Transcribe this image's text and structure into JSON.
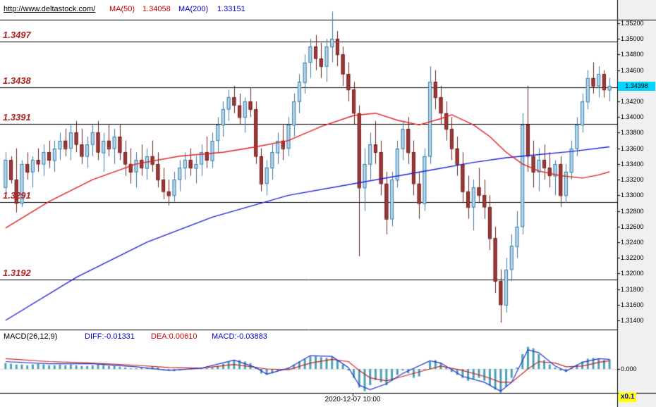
{
  "header": {
    "url": "http://www.deltastock.com/",
    "ma50_label": "MA(50)",
    "ma50_value": "1.34058",
    "ma200_label": "MA(200)",
    "ma200_value": "1.33151"
  },
  "axis": {
    "price_ticks": [
      "1.35200",
      "1.35000",
      "1.34800",
      "1.34600",
      "1.34400",
      "1.34200",
      "1.34000",
      "1.33800",
      "1.33600",
      "1.33400",
      "1.33200",
      "1.33000",
      "1.32800",
      "1.32600",
      "1.32400",
      "1.32200",
      "1.32000",
      "1.31800",
      "1.31600",
      "1.31400"
    ],
    "current_price": "1.34398",
    "macd_zero": "0.000",
    "multiplier": "x0.1"
  },
  "levels": [
    {
      "label": "1.3497",
      "value": 1.3497
    },
    {
      "label": "1.3438",
      "value": 1.3438
    },
    {
      "label": "1.3391",
      "value": 1.3391
    },
    {
      "label": "1.3291",
      "value": 1.3291
    },
    {
      "label": "1.3192",
      "value": 1.3192
    }
  ],
  "macd_header": {
    "title": "MACD(26,12,9)",
    "diff": "DIFF:-0.01331",
    "dea": "DEA:0.00610",
    "macd": "MACD:-0.03883"
  },
  "footer": {
    "timestamp": "2020-12-07 10:00"
  },
  "colors": {
    "axis_bg": "#f0f0f0",
    "up_fill": "#b8d8ea",
    "up_stroke": "#3a7ca8",
    "down_fill": "#9e3939",
    "down_stroke": "#6e1f1f",
    "ma50": "#e02020",
    "ma200": "#2020dd",
    "hist": "#4aa0b8",
    "diff_line": "#2233cc",
    "dea_line": "#cc2222",
    "level_line": "#000000",
    "price_tag_bg": "#00d5ff",
    "multiplier_bg": "#ffff00"
  },
  "chart_data": {
    "type": "candlestick",
    "ylim": [
      1.3126,
      1.3525
    ],
    "candles": [
      [
        1.331,
        1.3355,
        1.33,
        1.3345
      ],
      [
        1.3345,
        1.335,
        1.3315,
        1.332
      ],
      [
        1.332,
        1.336,
        1.3278,
        1.329
      ],
      [
        1.329,
        1.3345,
        1.3285,
        1.334
      ],
      [
        1.334,
        1.3355,
        1.332,
        1.333
      ],
      [
        1.333,
        1.335,
        1.331,
        1.3345
      ],
      [
        1.3345,
        1.336,
        1.333,
        1.334
      ],
      [
        1.334,
        1.3365,
        1.3325,
        1.3355
      ],
      [
        1.3355,
        1.337,
        1.3335,
        1.3345
      ],
      [
        1.3345,
        1.337,
        1.333,
        1.336
      ],
      [
        1.336,
        1.338,
        1.3345,
        1.337
      ],
      [
        1.337,
        1.3385,
        1.335,
        1.336
      ],
      [
        1.336,
        1.339,
        1.3345,
        1.338
      ],
      [
        1.338,
        1.3395,
        1.3355,
        1.3365
      ],
      [
        1.3365,
        1.3385,
        1.334,
        1.335
      ],
      [
        1.335,
        1.3375,
        1.3335,
        1.3365
      ],
      [
        1.3365,
        1.339,
        1.335,
        1.338
      ],
      [
        1.338,
        1.3395,
        1.3345,
        1.3355
      ],
      [
        1.3355,
        1.338,
        1.333,
        1.337
      ],
      [
        1.337,
        1.339,
        1.335,
        1.336
      ],
      [
        1.336,
        1.3385,
        1.334,
        1.3375
      ],
      [
        1.3375,
        1.339,
        1.3345,
        1.3355
      ],
      [
        1.3355,
        1.337,
        1.3325,
        1.334
      ],
      [
        1.334,
        1.336,
        1.3315,
        1.333
      ],
      [
        1.333,
        1.3355,
        1.331,
        1.3345
      ],
      [
        1.3345,
        1.3365,
        1.3325,
        1.3335
      ],
      [
        1.3335,
        1.336,
        1.332,
        1.335
      ],
      [
        1.335,
        1.337,
        1.333,
        1.334
      ],
      [
        1.334,
        1.3355,
        1.331,
        1.332
      ],
      [
        1.332,
        1.3335,
        1.3295,
        1.3305
      ],
      [
        1.3305,
        1.332,
        1.3287,
        1.33
      ],
      [
        1.33,
        1.333,
        1.3292,
        1.332
      ],
      [
        1.332,
        1.3345,
        1.3305,
        1.3335
      ],
      [
        1.3335,
        1.3355,
        1.332,
        1.3345
      ],
      [
        1.3345,
        1.336,
        1.3325,
        1.3335
      ],
      [
        1.3335,
        1.335,
        1.3315,
        1.334
      ],
      [
        1.334,
        1.3365,
        1.3325,
        1.3355
      ],
      [
        1.3355,
        1.3375,
        1.3335,
        1.3345
      ],
      [
        1.3345,
        1.338,
        1.3335,
        1.337
      ],
      [
        1.337,
        1.34,
        1.3355,
        1.339
      ],
      [
        1.339,
        1.342,
        1.3375,
        1.341
      ],
      [
        1.341,
        1.3435,
        1.3395,
        1.3425
      ],
      [
        1.3425,
        1.344,
        1.3405,
        1.3415
      ],
      [
        1.3415,
        1.343,
        1.339,
        1.34
      ],
      [
        1.34,
        1.3425,
        1.338,
        1.342
      ],
      [
        1.342,
        1.3438,
        1.34,
        1.341
      ],
      [
        1.341,
        1.342,
        1.334,
        1.335
      ],
      [
        1.335,
        1.336,
        1.3305,
        1.3315
      ],
      [
        1.3315,
        1.3345,
        1.33,
        1.3335
      ],
      [
        1.3335,
        1.3365,
        1.332,
        1.3355
      ],
      [
        1.3355,
        1.338,
        1.334,
        1.337
      ],
      [
        1.337,
        1.339,
        1.3345,
        1.336
      ],
      [
        1.336,
        1.34,
        1.335,
        1.339
      ],
      [
        1.339,
        1.343,
        1.3375,
        1.342
      ],
      [
        1.342,
        1.3455,
        1.3405,
        1.3445
      ],
      [
        1.3445,
        1.348,
        1.343,
        1.347
      ],
      [
        1.347,
        1.35,
        1.345,
        1.349
      ],
      [
        1.349,
        1.3505,
        1.346,
        1.3475
      ],
      [
        1.3475,
        1.3495,
        1.345,
        1.3465
      ],
      [
        1.3465,
        1.35,
        1.3445,
        1.349
      ],
      [
        1.349,
        1.3535,
        1.347,
        1.35
      ],
      [
        1.35,
        1.351,
        1.3465,
        1.348
      ],
      [
        1.348,
        1.349,
        1.344,
        1.3455
      ],
      [
        1.3455,
        1.347,
        1.342,
        1.3435
      ],
      [
        1.3435,
        1.3445,
        1.339,
        1.3405
      ],
      [
        1.3405,
        1.3415,
        1.3222,
        1.331
      ],
      [
        1.331,
        1.336,
        1.328,
        1.334
      ],
      [
        1.334,
        1.338,
        1.332,
        1.3365
      ],
      [
        1.3365,
        1.3395,
        1.334,
        1.3355
      ],
      [
        1.3355,
        1.337,
        1.33,
        1.3315
      ],
      [
        1.3315,
        1.333,
        1.325,
        1.327
      ],
      [
        1.327,
        1.333,
        1.326,
        1.332
      ],
      [
        1.332,
        1.337,
        1.331,
        1.336
      ],
      [
        1.336,
        1.3395,
        1.3345,
        1.3385
      ],
      [
        1.3385,
        1.34,
        1.334,
        1.3355
      ],
      [
        1.3355,
        1.337,
        1.33,
        1.3315
      ],
      [
        1.3315,
        1.333,
        1.327,
        1.329
      ],
      [
        1.329,
        1.336,
        1.328,
        1.335
      ],
      [
        1.335,
        1.3465,
        1.334,
        1.3445
      ],
      [
        1.3445,
        1.346,
        1.341,
        1.3425
      ],
      [
        1.3425,
        1.344,
        1.339,
        1.3405
      ],
      [
        1.3405,
        1.342,
        1.337,
        1.3385
      ],
      [
        1.3385,
        1.34,
        1.3345,
        1.336
      ],
      [
        1.336,
        1.3375,
        1.3325,
        1.334
      ],
      [
        1.334,
        1.3355,
        1.329,
        1.3305
      ],
      [
        1.3305,
        1.3325,
        1.327,
        1.3285
      ],
      [
        1.3285,
        1.332,
        1.3255,
        1.331
      ],
      [
        1.331,
        1.3335,
        1.329,
        1.33
      ],
      [
        1.33,
        1.332,
        1.327,
        1.3285
      ],
      [
        1.3285,
        1.33,
        1.323,
        1.3245
      ],
      [
        1.3245,
        1.326,
        1.3175,
        1.319
      ],
      [
        1.319,
        1.3205,
        1.3137,
        1.316
      ],
      [
        1.316,
        1.322,
        1.315,
        1.3205
      ],
      [
        1.3205,
        1.325,
        1.319,
        1.3235
      ],
      [
        1.3235,
        1.328,
        1.322,
        1.326
      ],
      [
        1.326,
        1.3405,
        1.325,
        1.339
      ],
      [
        1.339,
        1.344,
        1.333,
        1.335
      ],
      [
        1.335,
        1.337,
        1.331,
        1.333
      ],
      [
        1.333,
        1.336,
        1.3305,
        1.3345
      ],
      [
        1.3345,
        1.3365,
        1.332,
        1.3335
      ],
      [
        1.3335,
        1.3355,
        1.331,
        1.3325
      ],
      [
        1.3325,
        1.3345,
        1.33,
        1.334
      ],
      [
        1.334,
        1.335,
        1.3285,
        1.33
      ],
      [
        1.33,
        1.334,
        1.329,
        1.333
      ],
      [
        1.333,
        1.337,
        1.332,
        1.336
      ],
      [
        1.336,
        1.34,
        1.335,
        1.339
      ],
      [
        1.339,
        1.343,
        1.338,
        1.342
      ],
      [
        1.342,
        1.346,
        1.341,
        1.345
      ],
      [
        1.345,
        1.347,
        1.343,
        1.344
      ],
      [
        1.344,
        1.3465,
        1.3425,
        1.3455
      ],
      [
        1.3455,
        1.346,
        1.3425,
        1.3435
      ],
      [
        1.3435,
        1.345,
        1.342,
        1.344
      ]
    ],
    "ma50": [
      [
        0,
        1.3258
      ],
      [
        8,
        1.3292
      ],
      [
        16,
        1.332
      ],
      [
        24,
        1.334
      ],
      [
        32,
        1.335
      ],
      [
        40,
        1.3355
      ],
      [
        46,
        1.3362
      ],
      [
        52,
        1.337
      ],
      [
        58,
        1.3388
      ],
      [
        64,
        1.3402
      ],
      [
        68,
        1.3405
      ],
      [
        72,
        1.3396
      ],
      [
        76,
        1.339
      ],
      [
        80,
        1.3398
      ],
      [
        82,
        1.3403
      ],
      [
        86,
        1.339
      ],
      [
        89,
        1.3375
      ],
      [
        92,
        1.3355
      ],
      [
        95,
        1.334
      ],
      [
        98,
        1.3331
      ],
      [
        102,
        1.3325
      ],
      [
        106,
        1.3322
      ],
      [
        109,
        1.3326
      ],
      [
        111,
        1.333
      ]
    ],
    "ma200": [
      [
        0,
        1.314
      ],
      [
        13,
        1.3195
      ],
      [
        26,
        1.324
      ],
      [
        38,
        1.3272
      ],
      [
        52,
        1.33
      ],
      [
        65,
        1.3316
      ],
      [
        78,
        1.3332
      ],
      [
        86,
        1.3342
      ],
      [
        92,
        1.3348
      ],
      [
        98,
        1.3352
      ],
      [
        104,
        1.3356
      ],
      [
        111,
        1.3362
      ]
    ],
    "macd": {
      "scale": 0.0001,
      "hist": [
        8,
        7,
        6,
        6,
        5,
        6,
        7,
        6,
        5,
        5,
        6,
        5,
        6,
        5,
        4,
        4,
        5,
        6,
        5,
        4,
        4,
        3,
        2,
        1,
        1,
        2,
        2,
        3,
        2,
        0,
        -2,
        -3,
        -2,
        -1,
        1,
        2,
        2,
        1,
        2,
        4,
        7,
        10,
        12,
        12,
        10,
        8,
        2,
        -6,
        -8,
        -6,
        -3,
        -1,
        2,
        6,
        10,
        14,
        17,
        18,
        16,
        15,
        16,
        12,
        6,
        -2,
        -12,
        -25,
        -30,
        -22,
        -15,
        -18,
        -22,
        -16,
        -8,
        -2,
        -6,
        -12,
        -10,
        0,
        10,
        12,
        8,
        2,
        -4,
        -8,
        -12,
        -16,
        -14,
        -12,
        -16,
        -22,
        -28,
        -32,
        -24,
        -12,
        2,
        20,
        30,
        28,
        20,
        12,
        6,
        2,
        -2,
        -4,
        2,
        6,
        10,
        14,
        15,
        14,
        12,
        13
      ],
      "diff_line": [
        [
          0,
          10
        ],
        [
          8,
          7
        ],
        [
          16,
          7
        ],
        [
          24,
          3
        ],
        [
          30,
          -2
        ],
        [
          36,
          1
        ],
        [
          42,
          12
        ],
        [
          46,
          2
        ],
        [
          48,
          -7
        ],
        [
          52,
          1
        ],
        [
          56,
          18
        ],
        [
          60,
          17
        ],
        [
          63,
          2
        ],
        [
          65,
          -22
        ],
        [
          67,
          -28
        ],
        [
          70,
          -20
        ],
        [
          73,
          -6
        ],
        [
          78,
          11
        ],
        [
          80,
          8
        ],
        [
          84,
          -10
        ],
        [
          88,
          -18
        ],
        [
          91,
          -30
        ],
        [
          93,
          -18
        ],
        [
          96,
          26
        ],
        [
          98,
          22
        ],
        [
          101,
          4
        ],
        [
          103,
          -3
        ],
        [
          106,
          9
        ],
        [
          109,
          14
        ],
        [
          111,
          13
        ]
      ],
      "dea_line": [
        [
          0,
          14
        ],
        [
          8,
          10
        ],
        [
          16,
          8
        ],
        [
          24,
          5
        ],
        [
          30,
          2
        ],
        [
          36,
          1
        ],
        [
          42,
          6
        ],
        [
          48,
          0
        ],
        [
          52,
          -1
        ],
        [
          56,
          8
        ],
        [
          60,
          13
        ],
        [
          63,
          10
        ],
        [
          65,
          -2
        ],
        [
          67,
          -12
        ],
        [
          70,
          -16
        ],
        [
          73,
          -10
        ],
        [
          78,
          0
        ],
        [
          80,
          4
        ],
        [
          84,
          -2
        ],
        [
          88,
          -10
        ],
        [
          91,
          -18
        ],
        [
          93,
          -18
        ],
        [
          96,
          0
        ],
        [
          98,
          10
        ],
        [
          101,
          8
        ],
        [
          103,
          3
        ],
        [
          106,
          4
        ],
        [
          109,
          9
        ],
        [
          111,
          11
        ]
      ]
    }
  }
}
